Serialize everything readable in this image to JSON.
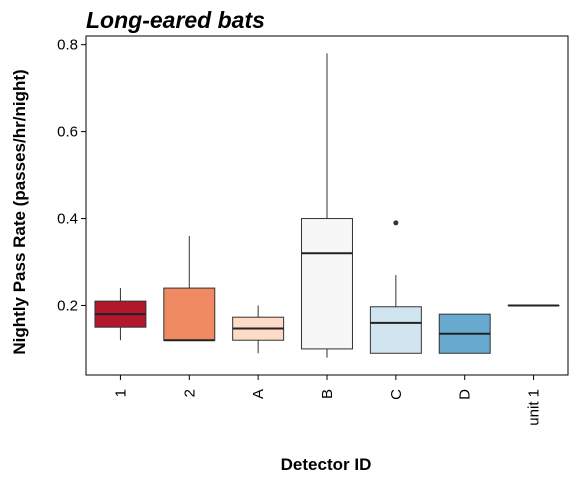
{
  "chart_data": {
    "type": "box",
    "title": "Long-eared bats",
    "xlabel": "Detector ID",
    "ylabel": "Nightly Pass Rate (passes/hr/night)",
    "ylim": [
      0.04,
      0.82
    ],
    "yticks": [
      0.2,
      0.4,
      0.6,
      0.8
    ],
    "ytick_labels": [
      "0.2",
      "0.4",
      "0.6",
      "0.8"
    ],
    "grid": false,
    "legend": "none",
    "categories": [
      "1",
      "2",
      "A",
      "B",
      "C",
      "D",
      "unit 1"
    ],
    "boxes": [
      {
        "category": "1",
        "min": 0.12,
        "q1": 0.15,
        "median": 0.18,
        "q3": 0.21,
        "max": 0.24,
        "outliers": [],
        "color": "#b2182b"
      },
      {
        "category": "2",
        "min": 0.12,
        "q1": 0.12,
        "median": 0.12,
        "q3": 0.24,
        "max": 0.36,
        "outliers": [],
        "color": "#ef8a62"
      },
      {
        "category": "A",
        "min": 0.09,
        "q1": 0.12,
        "median": 0.147,
        "q3": 0.173,
        "max": 0.2,
        "outliers": [],
        "color": "#fddbc7"
      },
      {
        "category": "B",
        "min": 0.08,
        "q1": 0.1,
        "median": 0.32,
        "q3": 0.4,
        "max": 0.78,
        "outliers": [],
        "color": "#f7f7f7"
      },
      {
        "category": "C",
        "min": 0.09,
        "q1": 0.09,
        "median": 0.16,
        "q3": 0.197,
        "max": 0.27,
        "outliers": [
          0.39
        ],
        "color": "#d1e5f0"
      },
      {
        "category": "D",
        "min": 0.09,
        "q1": 0.09,
        "median": 0.135,
        "q3": 0.18,
        "max": 0.18,
        "outliers": [],
        "color": "#67a9cf"
      },
      {
        "category": "unit 1",
        "min": 0.2,
        "q1": 0.2,
        "median": 0.2,
        "q3": 0.2,
        "max": 0.2,
        "outliers": [],
        "color": "#2166ac"
      }
    ]
  }
}
